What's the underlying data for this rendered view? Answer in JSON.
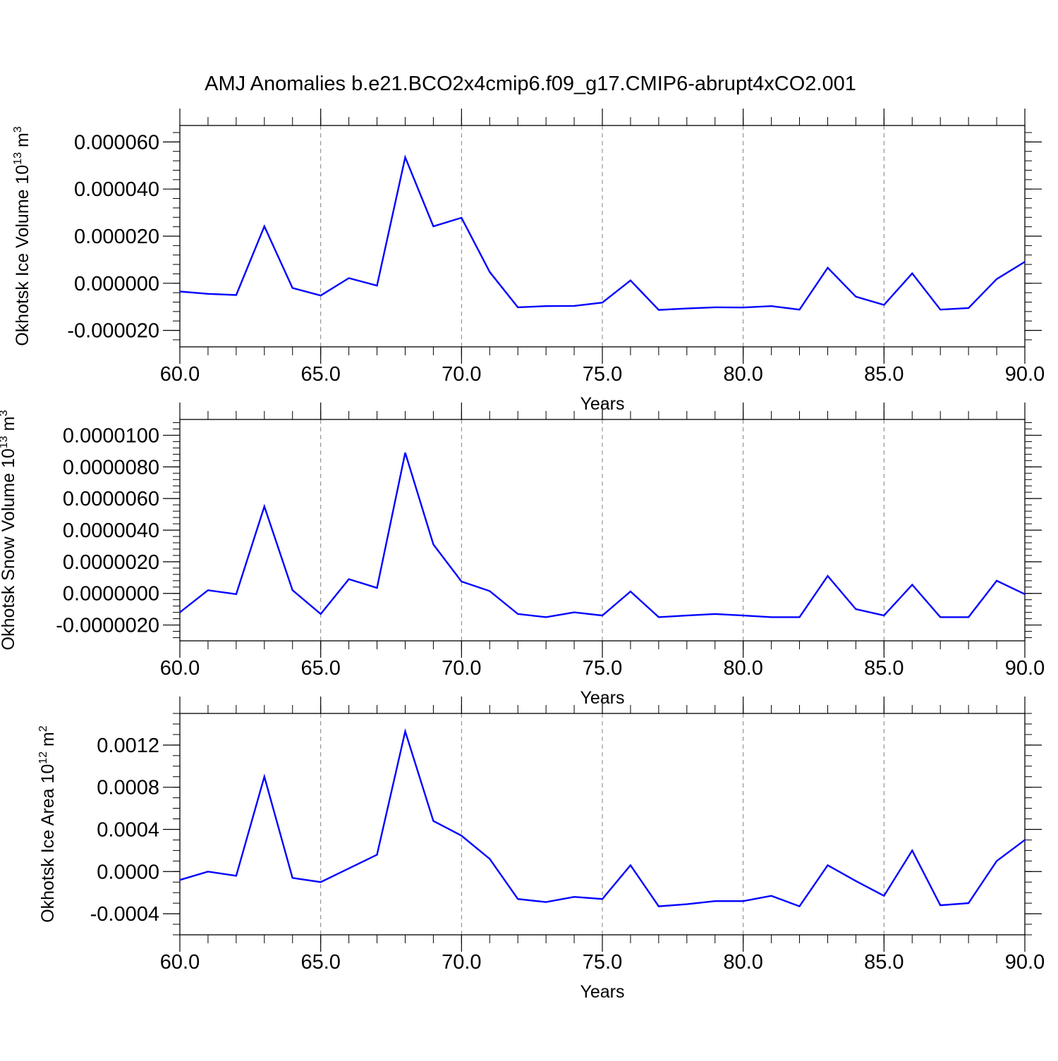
{
  "title": "AMJ Anomalies b.e21.BCO2x4cmip6.f09_g17.CMIP6-abrupt4xCO2.001",
  "colors": {
    "line": "#0000ff",
    "axis": "#000000",
    "grid": "#808080",
    "background": "#ffffff"
  },
  "chart_data": [
    {
      "type": "line",
      "xlabel": "Years",
      "ylabel": {
        "prefix": "Okhotsk Ice Volume 10",
        "exponent": "13",
        "unit": " m",
        "unit_exponent": "3"
      },
      "xlim": [
        60,
        90
      ],
      "ylim": [
        -2.7e-05,
        6.7e-05
      ],
      "xticks": [
        60,
        65,
        70,
        75,
        80,
        85,
        90
      ],
      "xtick_labels": [
        "60.0",
        "65.0",
        "70.0",
        "75.0",
        "80.0",
        "85.0",
        "90.0"
      ],
      "yticks": [
        -2e-05,
        0,
        2e-05,
        4e-05,
        6e-05
      ],
      "ytick_labels": [
        "-0.000020",
        "0.000000",
        "0.000020",
        "0.000040",
        "0.000060"
      ],
      "y_minor_step": 4e-06,
      "grid": "x-dashed",
      "series": [
        {
          "x": [
            60,
            61,
            62,
            63,
            64,
            65,
            66,
            67,
            68,
            69,
            70,
            71,
            72,
            73,
            74,
            75,
            76,
            77,
            78,
            79,
            80,
            81,
            82,
            83,
            84,
            85,
            86,
            87,
            88,
            89,
            90
          ],
          "y": [
            -3.5e-06,
            -4.5e-06,
            -5e-06,
            2.42e-05,
            -2e-06,
            -5.2e-06,
            2.2e-06,
            -1e-06,
            5.35e-05,
            2.42e-05,
            2.78e-05,
            4.8e-06,
            -1.02e-05,
            -9.7e-06,
            -9.6e-06,
            -8.2e-06,
            1.2e-06,
            -1.13e-05,
            -1.07e-05,
            -1.02e-05,
            -1.03e-05,
            -9.7e-06,
            -1.12e-05,
            6.6e-06,
            -5.7e-06,
            -9.2e-06,
            4.2e-06,
            -1.12e-05,
            -1.05e-05,
            1.8e-06,
            9.1e-06
          ]
        }
      ]
    },
    {
      "type": "line",
      "xlabel": "Years",
      "ylabel": {
        "prefix": "Okhotsk Snow Volume 10",
        "exponent": "13",
        "unit": " m",
        "unit_exponent": "3"
      },
      "xlim": [
        60,
        90
      ],
      "ylim": [
        -3e-06,
        1.1e-05
      ],
      "xticks": [
        60,
        65,
        70,
        75,
        80,
        85,
        90
      ],
      "xtick_labels": [
        "60.0",
        "65.0",
        "70.0",
        "75.0",
        "80.0",
        "85.0",
        "90.0"
      ],
      "yticks": [
        -2e-06,
        0,
        2e-06,
        4e-06,
        6e-06,
        8e-06,
        1e-05
      ],
      "ytick_labels": [
        "-0.0000020",
        "0.0000000",
        "0.0000020",
        "0.0000040",
        "0.0000060",
        "0.0000080",
        "0.0000100"
      ],
      "y_minor_step": 4e-07,
      "grid": "x-dashed",
      "series": [
        {
          "x": [
            60,
            61,
            62,
            63,
            64,
            65,
            66,
            67,
            68,
            69,
            70,
            71,
            72,
            73,
            74,
            75,
            76,
            77,
            78,
            79,
            80,
            81,
            82,
            83,
            84,
            85,
            86,
            87,
            88,
            89,
            90
          ],
          "y": [
            -1.2e-06,
            2e-07,
            -5e-08,
            5.5e-06,
            2e-07,
            -1.3e-06,
            9e-07,
            3.5e-07,
            8.9e-06,
            3.1e-06,
            7.5e-07,
            1.5e-07,
            -1.3e-06,
            -1.5e-06,
            -1.2e-06,
            -1.4e-06,
            1.2e-07,
            -1.5e-06,
            -1.4e-06,
            -1.3e-06,
            -1.4e-06,
            -1.5e-06,
            -1.5e-06,
            1.1e-06,
            -1e-06,
            -1.4e-06,
            5.5e-07,
            -1.5e-06,
            -1.5e-06,
            8e-07,
            -5e-08
          ]
        }
      ]
    },
    {
      "type": "line",
      "xlabel": "Years",
      "ylabel": {
        "prefix": "Okhotsk Ice Area 10",
        "exponent": "12",
        "unit": " m",
        "unit_exponent": "2"
      },
      "xlim": [
        60,
        90
      ],
      "ylim": [
        -0.0006,
        0.0015
      ],
      "xticks": [
        60,
        65,
        70,
        75,
        80,
        85,
        90
      ],
      "xtick_labels": [
        "60.0",
        "65.0",
        "70.0",
        "75.0",
        "80.0",
        "85.0",
        "90.0"
      ],
      "yticks": [
        -0.0004,
        0,
        0.0004,
        0.0008,
        0.0012
      ],
      "ytick_labels": [
        "-0.0004",
        "0.0000",
        "0.0004",
        "0.0008",
        "0.0012"
      ],
      "y_minor_step": 0.0001,
      "grid": "x-dashed",
      "series": [
        {
          "x": [
            60,
            61,
            62,
            63,
            64,
            65,
            66,
            67,
            68,
            69,
            70,
            71,
            72,
            73,
            74,
            75,
            76,
            77,
            78,
            79,
            80,
            81,
            82,
            83,
            84,
            85,
            86,
            87,
            88,
            89,
            90
          ],
          "y": [
            -8e-05,
            0.0,
            -4e-05,
            0.0009,
            -6e-05,
            -0.0001,
            3e-05,
            0.00016,
            0.00133,
            0.00048,
            0.00034,
            0.00012,
            -0.00026,
            -0.00029,
            -0.00024,
            -0.00026,
            6e-05,
            -0.00033,
            -0.00031,
            -0.00028,
            -0.00028,
            -0.00023,
            -0.00033,
            6e-05,
            -9e-05,
            -0.00023,
            0.0002,
            -0.00032,
            -0.0003,
            0.0001,
            0.0003
          ]
        }
      ]
    }
  ]
}
